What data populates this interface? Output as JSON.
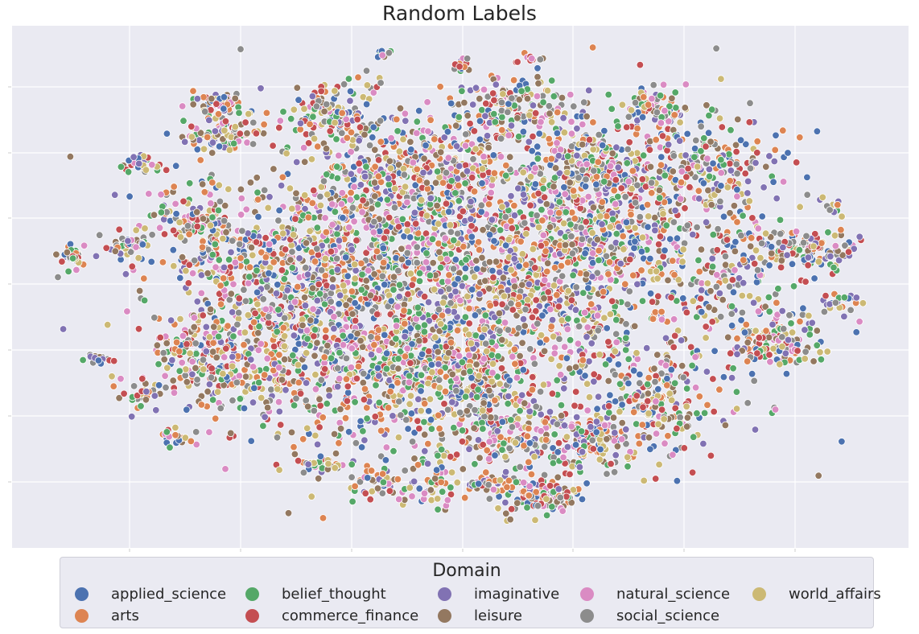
{
  "chart_data": {
    "type": "scatter",
    "title": "Random Labels",
    "xlabel": "",
    "ylabel": "",
    "grid": true,
    "x_tick_labels_shown": false,
    "y_tick_labels_shown": false,
    "legend": {
      "title": "Domain",
      "placement": "bottom-center",
      "columns": 5
    },
    "series": [
      {
        "name": "applied_science",
        "color": "#4c72b0"
      },
      {
        "name": "arts",
        "color": "#dd8452"
      },
      {
        "name": "belief_thought",
        "color": "#55a868"
      },
      {
        "name": "commerce_finance",
        "color": "#c44e52"
      },
      {
        "name": "imaginative",
        "color": "#8172b3"
      },
      {
        "name": "leisure",
        "color": "#937860"
      },
      {
        "name": "natural_science",
        "color": "#da8bc3"
      },
      {
        "name": "social_science",
        "color": "#8c8c8c"
      },
      {
        "name": "world_affairs",
        "color": "#ccb974"
      }
    ]
  }
}
